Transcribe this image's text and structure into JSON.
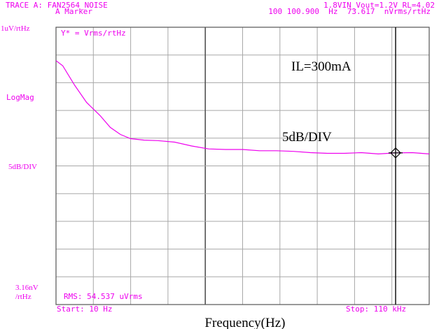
{
  "header": {
    "trace_line": "TRACE A: FAN2564_NOISE",
    "marker_line": "A Marker",
    "conditions_line": "1.8VIN_Vout=1.2V_RL=4.02",
    "marker_readout_line": "100 100.900  Hz  73.617  nVrms/rtHz"
  },
  "y_side_labels": {
    "top": "1uV/rtHz",
    "middle": "LogMag",
    "scale": "5dB/DIV",
    "bottom_line1": "3.16nV",
    "bottom_line2": "/rtHz"
  },
  "plot_labels": {
    "y_function": "Y* = Vrms/rtHz",
    "rms": "RMS: 54.537   uVrms",
    "start": "Start: 10 Hz",
    "stop": "Stop: 110 kHz",
    "current_annotation": "IL=300mA",
    "scale_annotation": "5dB/DIV",
    "xlabel": "Frequency(Hz)"
  },
  "colors": {
    "trace": "#ee00ee",
    "text": "#ee00ee",
    "grid": "#a8a8a8",
    "axis": "#555555",
    "marker_line": "#000000"
  },
  "chart_data": {
    "type": "line",
    "x_scale": "linear",
    "xlim": [
      10,
      110000
    ],
    "y_scale": "log",
    "ylim_nV_per_rtHz": [
      3.16,
      1000
    ],
    "y_scale_text": "5dB/DIV",
    "grid": true,
    "marker": {
      "x": 100100.9,
      "y": 73.617
    },
    "series": [
      {
        "x": [
          10,
          2000,
          5500,
          9000,
          13000,
          16000,
          19000,
          22000,
          26000,
          30000,
          35000,
          40000,
          45000,
          50000,
          55000,
          60000,
          65000,
          70000,
          75000,
          80000,
          85000,
          90000,
          95000,
          100100.9,
          105000,
          110000
        ],
        "y": [
          500,
          450,
          300,
          210,
          160,
          125,
          108,
          99,
          96,
          95,
          92,
          85,
          80,
          79,
          79,
          77,
          77,
          76,
          74,
          73,
          73,
          74,
          72,
          73.617,
          74,
          72
        ]
      }
    ]
  }
}
